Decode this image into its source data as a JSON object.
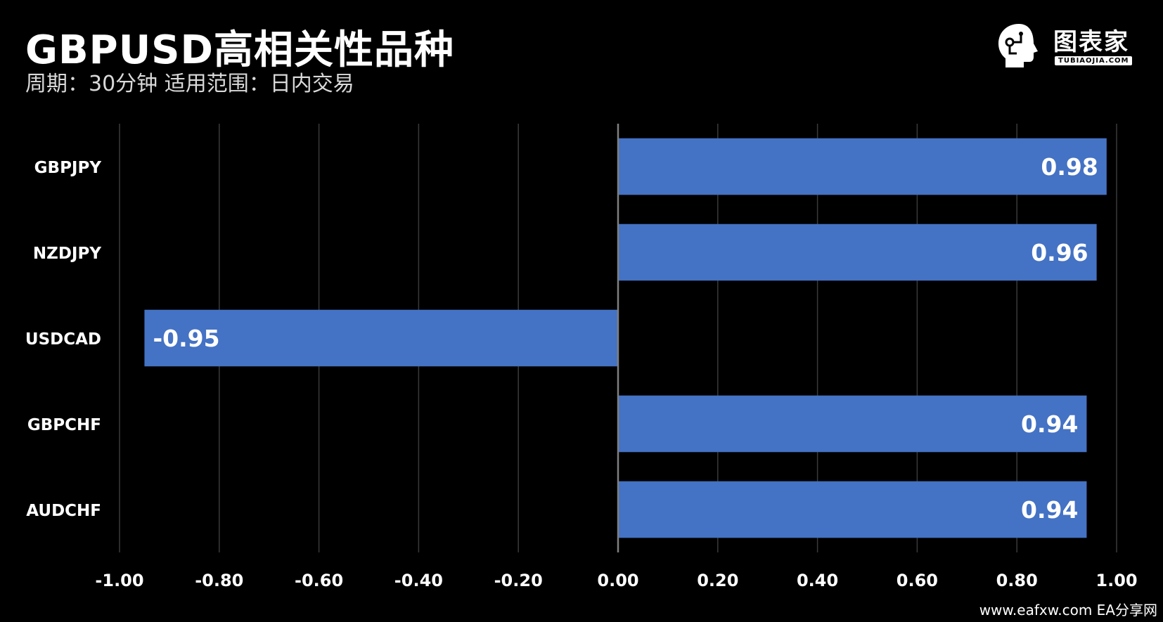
{
  "header": {
    "title": "GBPUSD高相关性品种",
    "subtitle": "周期：30分钟  适用范围：日内交易"
  },
  "logo": {
    "name": "图表家",
    "sub": "TUBIAOJIA.COM"
  },
  "footer": {
    "watermark": "www.eafxw.com   EA分享网"
  },
  "colors": {
    "background": "#000000",
    "bar": "#4472c4",
    "grid": "#3a3a3a",
    "axis": "#7f7f7f",
    "text": "#ffffff"
  },
  "chart_data": {
    "type": "bar",
    "orientation": "horizontal",
    "categories": [
      "GBPJPY",
      "NZDJPY",
      "USDCAD",
      "GBPCHF",
      "AUDCHF"
    ],
    "values": [
      0.98,
      0.96,
      -0.95,
      0.94,
      0.94
    ],
    "data_labels": [
      "0.98",
      "0.96",
      "-0.95",
      "0.94",
      "0.94"
    ],
    "xlim": [
      -1.0,
      1.0
    ],
    "x_ticks": [
      "-1.00",
      "-0.80",
      "-0.60",
      "-0.40",
      "-0.20",
      "0.00",
      "0.20",
      "0.40",
      "0.60",
      "0.80",
      "1.00"
    ],
    "grid": true,
    "legend": "none"
  }
}
